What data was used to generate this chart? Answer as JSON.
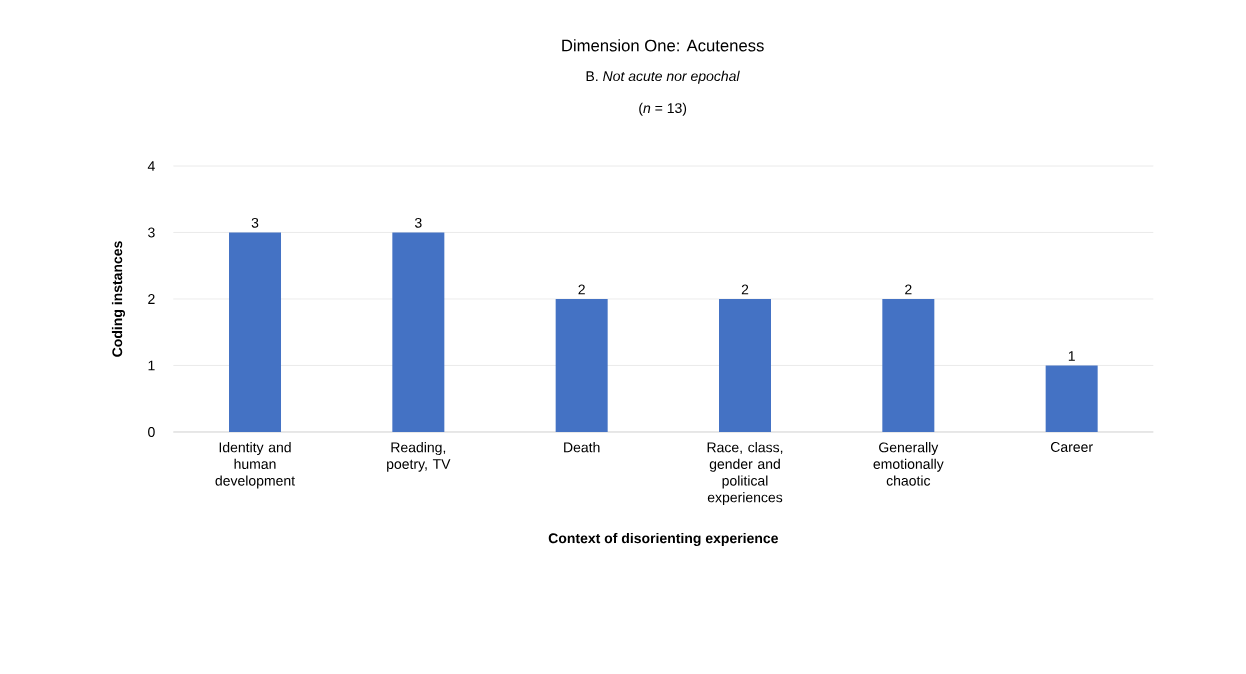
{
  "chart_data": {
    "type": "bar",
    "title": "Dimension One: Acuteness",
    "subtitle": "B. *Not acute nor epochal*",
    "annotations": [
      "(*n* = 13)"
    ],
    "xlabel": "Context of disorienting experience",
    "ylabel": "Coding instances",
    "categories": [
      "Identity and human development",
      "Reading, poetry, TV",
      "Death",
      "Race, class, gender and political experiences",
      "Generally emotionally chaotic",
      "Career"
    ],
    "values": [
      3,
      3,
      2,
      2,
      2,
      1
    ],
    "color": "#4472c4",
    "ylim": [
      0,
      4
    ],
    "yticks": [
      0,
      1,
      2,
      3,
      4
    ],
    "grid": "y",
    "data_labels": true
  }
}
